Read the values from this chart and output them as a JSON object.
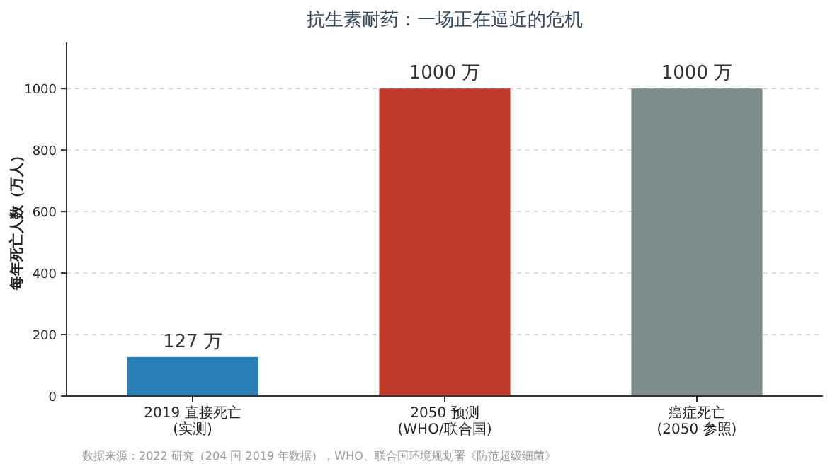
{
  "chart_data": {
    "type": "bar",
    "title": "抗生素耐药：一场正在逼近的危机",
    "ylabel": "每年死亡人数（万人）",
    "categories": [
      "2019 直接死亡\n(实测)",
      "2050 预测\n(WHO/联合国)",
      "癌症死亡\n(2050 参照)"
    ],
    "values": [
      127,
      1000,
      1000
    ],
    "colors": [
      "#2980b9",
      "#c0392b",
      "#7f8c8d"
    ],
    "value_labels": [
      "127 万",
      "1000 万",
      "1000 万"
    ],
    "ylim": [
      0,
      1150
    ],
    "yticks": [
      0,
      200,
      400,
      600,
      800,
      1000
    ],
    "grid": "y",
    "annotations": [
      "数据来源：2022 研究（204 国 2019 年数据），WHO、联合国环境规划署《防范超级细菌》"
    ]
  }
}
